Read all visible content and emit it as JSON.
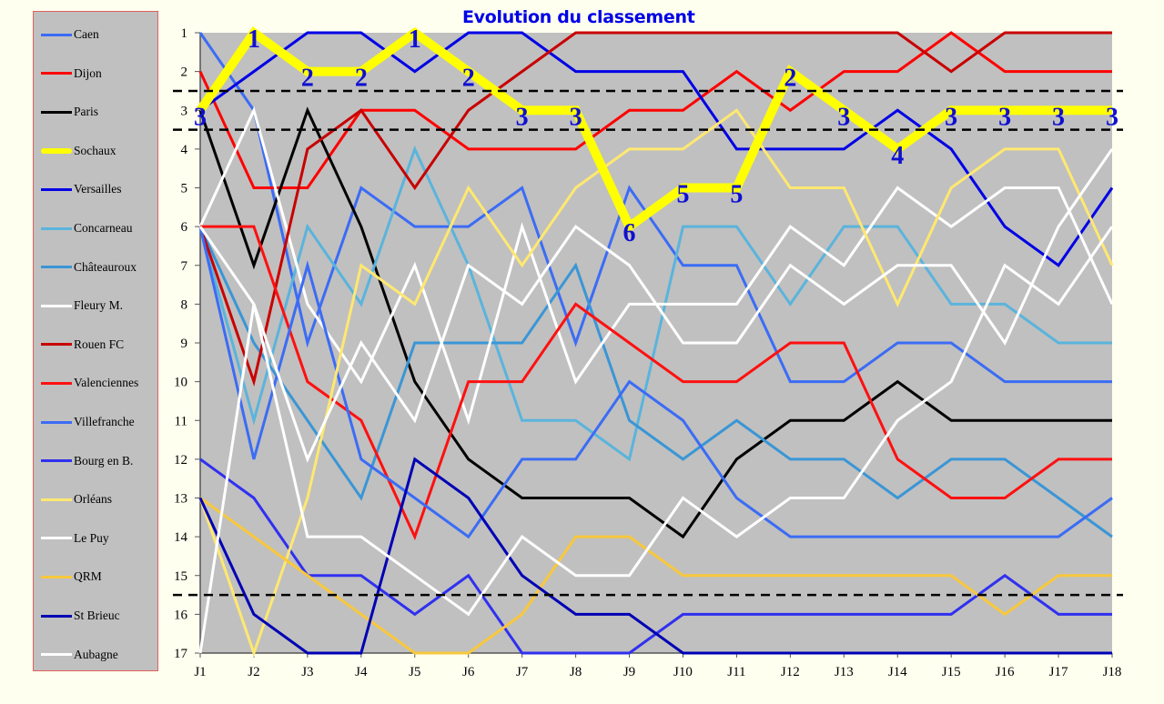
{
  "chart_data": {
    "type": "line",
    "title": "Evolution du classement",
    "xlabel": "",
    "ylabel": "",
    "ylim": [
      17,
      1
    ],
    "y_ticks": [
      "1",
      "2",
      "3",
      "4",
      "5",
      "6",
      "7",
      "8",
      "9",
      "10",
      "11",
      "12",
      "13",
      "14",
      "15",
      "16",
      "17"
    ],
    "categories": [
      "J1",
      "J2",
      "J3",
      "J4",
      "J5",
      "J6",
      "J7",
      "J8",
      "J9",
      "J10",
      "J11",
      "J12",
      "J13",
      "J14",
      "J15",
      "J16",
      "J17",
      "J18"
    ],
    "grid": false,
    "legend_position": "left",
    "reference_lines": [
      2.5,
      3.5,
      15.5
    ],
    "highlight_series": "Sochaux",
    "highlight_labels": [
      3,
      1,
      2,
      2,
      1,
      2,
      3,
      3,
      6,
      5,
      5,
      2,
      3,
      4,
      3,
      3,
      3,
      3
    ],
    "series": [
      {
        "name": "Caen",
        "color": "#3b6cf5",
        "values": [
          1,
          3,
          9,
          5,
          6,
          6,
          5,
          9,
          5,
          7,
          7,
          10,
          10,
          9,
          9,
          10,
          10,
          10
        ]
      },
      {
        "name": "Dijon",
        "color": "#ff0000",
        "values": [
          2,
          5,
          5,
          3,
          3,
          4,
          4,
          4,
          3,
          3,
          2,
          3,
          2,
          2,
          1,
          2,
          2,
          2
        ]
      },
      {
        "name": "Paris",
        "color": "#000000",
        "values": [
          3,
          7,
          3,
          6,
          10,
          12,
          13,
          13,
          13,
          14,
          12,
          11,
          11,
          10,
          11,
          11,
          11,
          11
        ]
      },
      {
        "name": "Sochaux",
        "color": "#ffff00",
        "values": [
          3,
          1,
          2,
          2,
          1,
          2,
          3,
          3,
          6,
          5,
          5,
          2,
          3,
          4,
          3,
          3,
          3,
          3
        ]
      },
      {
        "name": "Versailles",
        "color": "#0000e6",
        "values": [
          3,
          2,
          1,
          1,
          2,
          1,
          1,
          2,
          2,
          2,
          4,
          4,
          4,
          3,
          4,
          6,
          7,
          5
        ]
      },
      {
        "name": "Concarneau",
        "color": "#5ab4dc",
        "values": [
          6,
          11,
          6,
          8,
          4,
          7,
          11,
          11,
          12,
          6,
          6,
          8,
          6,
          6,
          8,
          8,
          9,
          9
        ]
      },
      {
        "name": "Châteauroux",
        "color": "#3a96d6",
        "values": [
          6,
          9,
          11,
          13,
          9,
          9,
          9,
          7,
          11,
          12,
          11,
          12,
          12,
          13,
          12,
          12,
          13,
          14
        ]
      },
      {
        "name": "Fleury M.",
        "color": "#ffffff",
        "values": [
          6,
          3,
          8,
          10,
          7,
          11,
          6,
          10,
          8,
          8,
          8,
          6,
          7,
          5,
          6,
          5,
          5,
          8
        ]
      },
      {
        "name": "Rouen FC",
        "color": "#c80000",
        "values": [
          6,
          10,
          4,
          3,
          5,
          3,
          2,
          1,
          1,
          1,
          1,
          1,
          1,
          1,
          2,
          1,
          1,
          1
        ]
      },
      {
        "name": "Valenciennes",
        "color": "#ff1010",
        "values": [
          6,
          6,
          10,
          11,
          14,
          10,
          10,
          8,
          9,
          10,
          10,
          9,
          9,
          12,
          13,
          13,
          12,
          12
        ]
      },
      {
        "name": "Villefranche",
        "color": "#3b6cf5",
        "values": [
          6,
          12,
          7,
          12,
          13,
          14,
          12,
          12,
          10,
          11,
          13,
          14,
          14,
          14,
          14,
          14,
          14,
          13
        ]
      },
      {
        "name": "Bourg en B.",
        "color": "#3030f0",
        "values": [
          12,
          13,
          15,
          15,
          16,
          15,
          17,
          17,
          17,
          16,
          16,
          16,
          16,
          16,
          16,
          15,
          16,
          16
        ]
      },
      {
        "name": "Orléans",
        "color": "#ffe870",
        "values": [
          13,
          17,
          13,
          7,
          8,
          5,
          7,
          5,
          4,
          4,
          3,
          5,
          5,
          8,
          5,
          4,
          4,
          7
        ]
      },
      {
        "name": "Le Puy",
        "color": "#ffffff",
        "values": [
          6,
          8,
          12,
          9,
          11,
          7,
          8,
          6,
          7,
          9,
          9,
          7,
          8,
          7,
          7,
          9,
          6,
          4
        ]
      },
      {
        "name": "QRM",
        "color": "#f8c83c",
        "values": [
          13,
          14,
          15,
          16,
          17,
          17,
          16,
          14,
          14,
          15,
          15,
          15,
          15,
          15,
          15,
          16,
          15,
          15
        ]
      },
      {
        "name": "St Brieuc",
        "color": "#0000b4",
        "values": [
          13,
          16,
          17,
          17,
          12,
          13,
          15,
          16,
          16,
          17,
          17,
          17,
          17,
          17,
          17,
          17,
          17,
          17
        ]
      },
      {
        "name": "Aubagne",
        "color": "#ffffff",
        "values": [
          17,
          8,
          14,
          14,
          15,
          16,
          14,
          15,
          15,
          13,
          14,
          13,
          13,
          11,
          10,
          7,
          8,
          6
        ]
      }
    ]
  }
}
